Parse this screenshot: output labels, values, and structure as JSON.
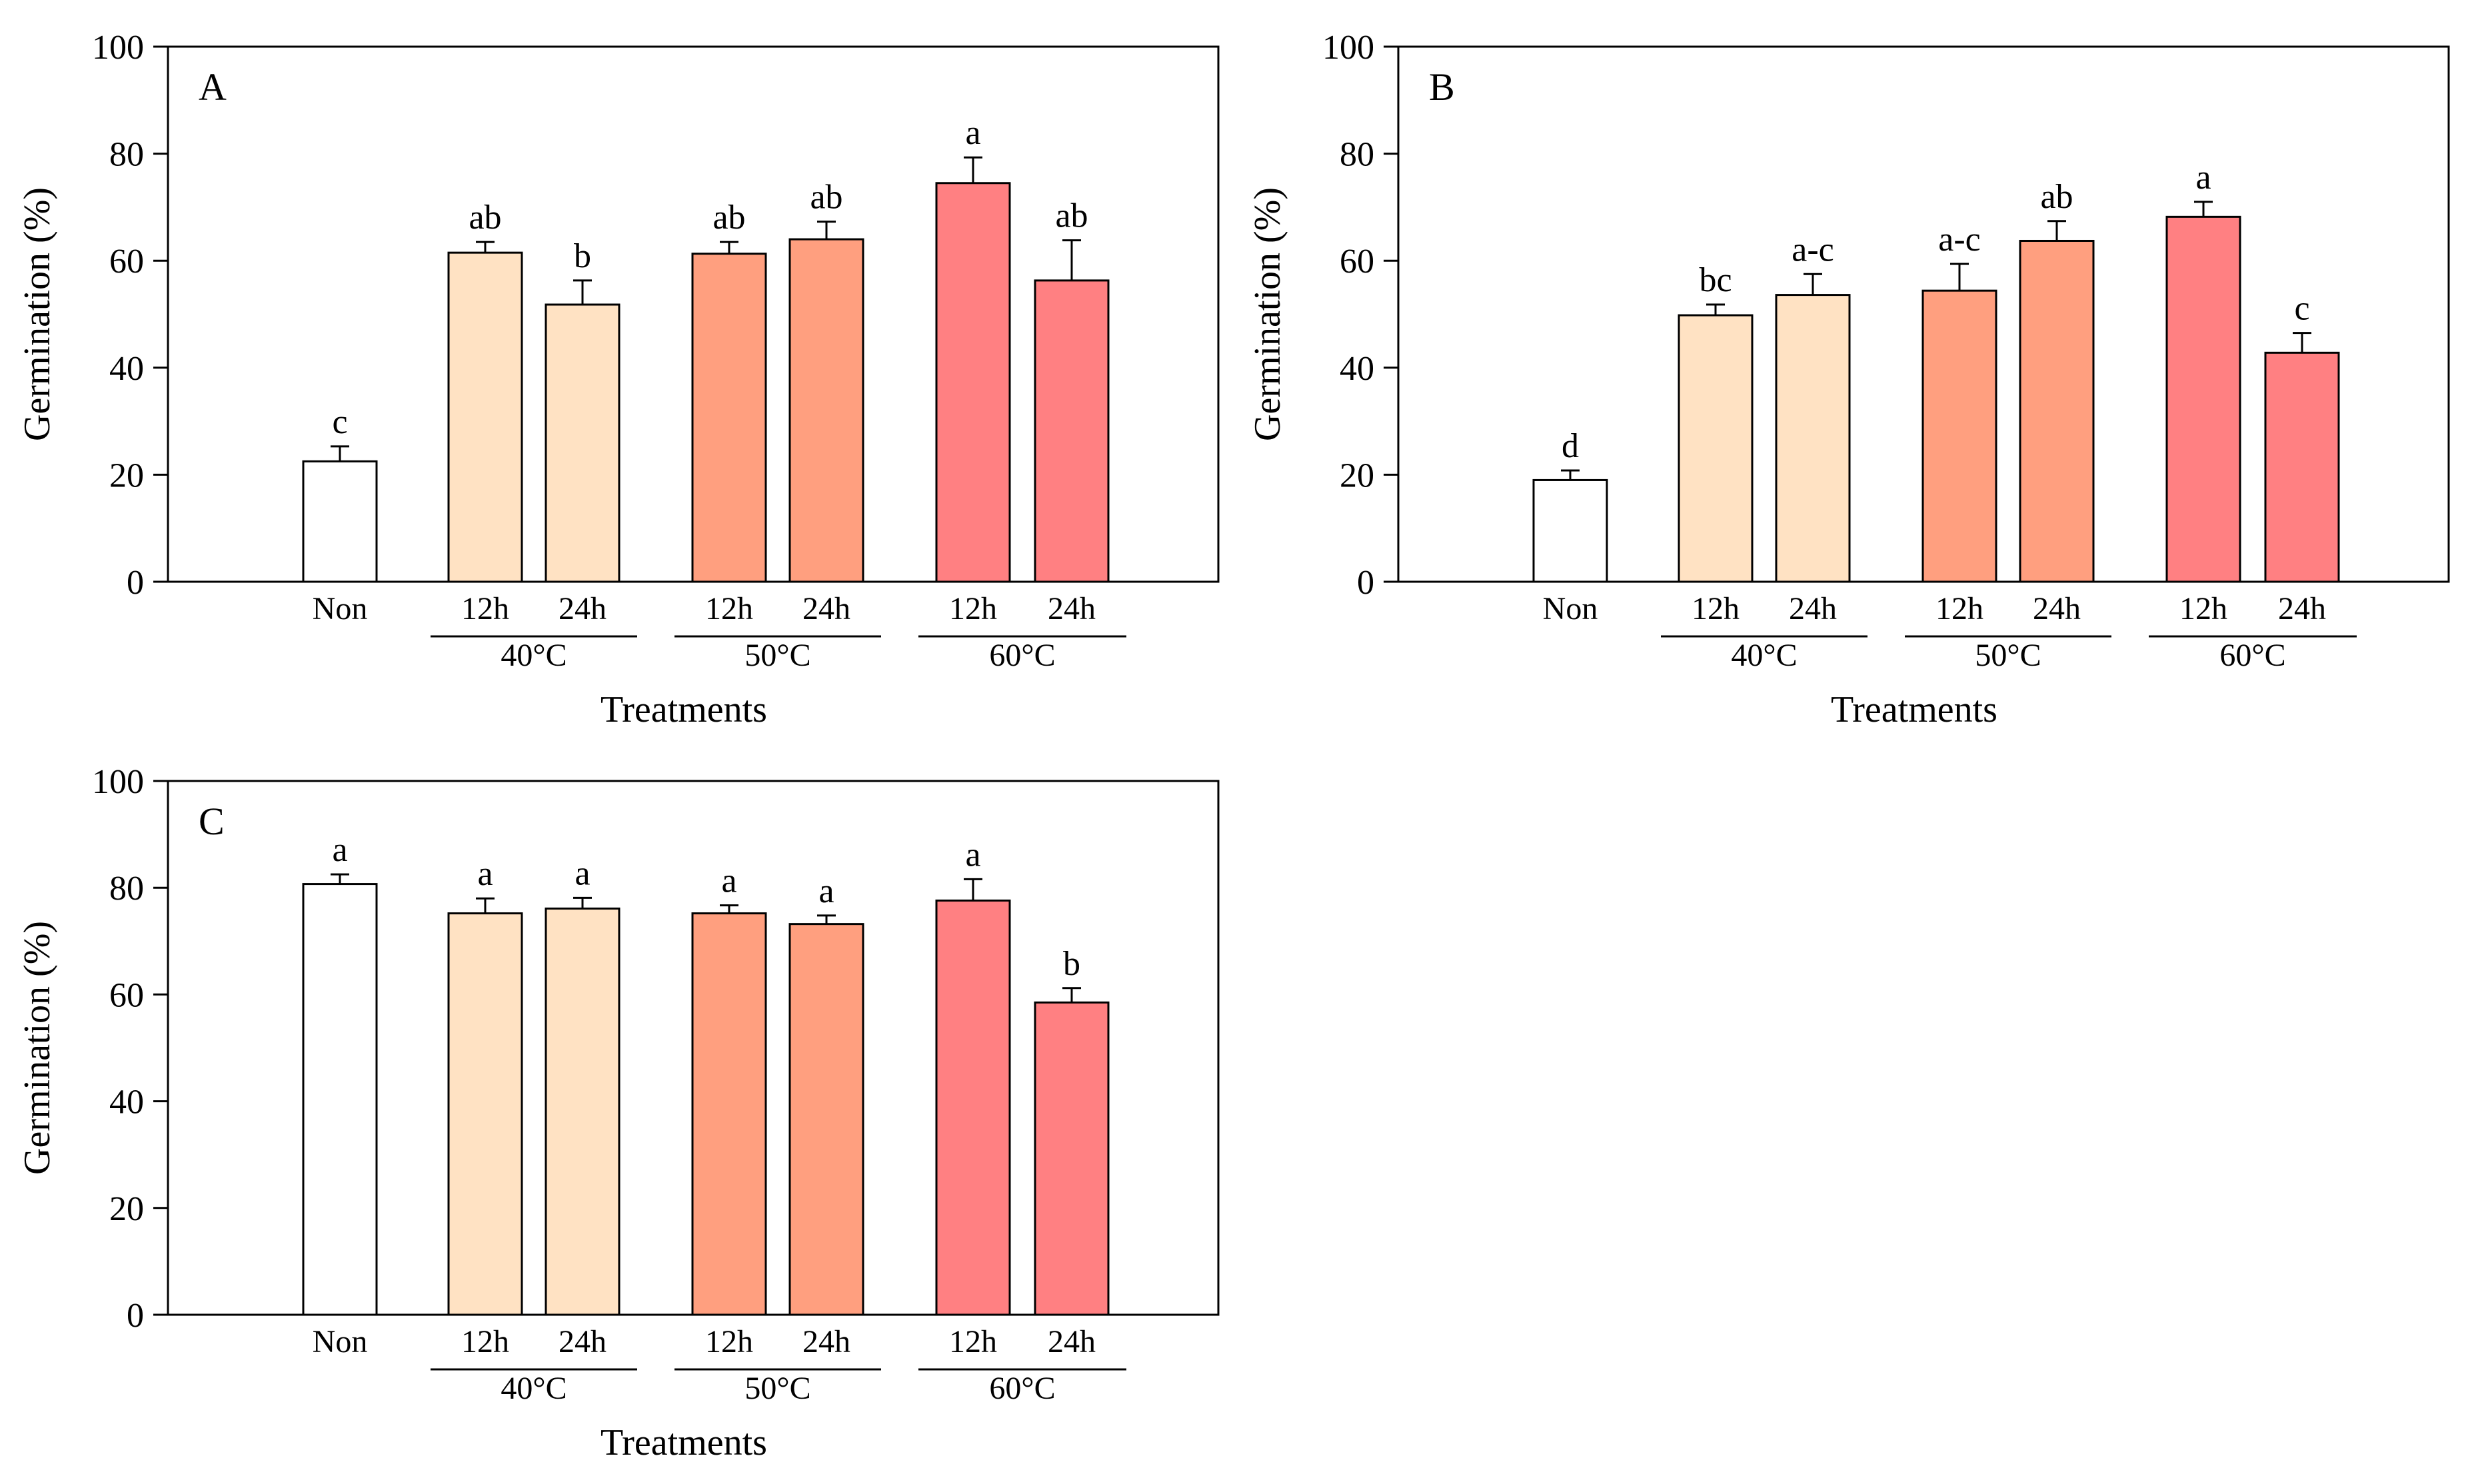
{
  "chart_data": [
    {
      "type": "bar",
      "panel": "A",
      "ylabel": "Germination (%)",
      "xlabel": "Treatments",
      "ylim": [
        0,
        100
      ],
      "yticks": [
        "0",
        "20",
        "40",
        "60",
        "80",
        "100"
      ],
      "categories": [
        "Non",
        "12h",
        "24h",
        "12h",
        "24h",
        "12h",
        "24h"
      ],
      "groups": [
        {
          "label": "40°C",
          "span": [
            1,
            2
          ]
        },
        {
          "label": "50°C",
          "span": [
            3,
            4
          ]
        },
        {
          "label": "60°C",
          "span": [
            5,
            6
          ]
        }
      ],
      "values": [
        22.5,
        61.5,
        51.8,
        61.3,
        64.0,
        74.5,
        56.3
      ],
      "errors": [
        2.8,
        2.0,
        4.5,
        2.2,
        3.3,
        4.8,
        7.5
      ],
      "significance": [
        "c",
        "ab",
        "b",
        "ab",
        "ab",
        "a",
        "ab"
      ],
      "colors": [
        "#ffffff",
        "#ffe2c3",
        "#ffe2c3",
        "#ff9f7f",
        "#ff9f7f",
        "#ff8082",
        "#ff8082"
      ]
    },
    {
      "type": "bar",
      "panel": "B",
      "ylabel": "Germination (%)",
      "xlabel": "Treatments",
      "ylim": [
        0,
        100
      ],
      "yticks": [
        "0",
        "20",
        "40",
        "60",
        "80",
        "100"
      ],
      "categories": [
        "Non",
        "12h",
        "24h",
        "12h",
        "24h",
        "12h",
        "24h"
      ],
      "groups": [
        {
          "label": "40°C",
          "span": [
            1,
            2
          ]
        },
        {
          "label": "50°C",
          "span": [
            3,
            4
          ]
        },
        {
          "label": "60°C",
          "span": [
            5,
            6
          ]
        }
      ],
      "values": [
        19.0,
        49.8,
        53.6,
        54.4,
        63.7,
        68.2,
        42.8
      ],
      "errors": [
        1.8,
        2.0,
        3.9,
        5.0,
        3.7,
        2.8,
        3.7
      ],
      "significance": [
        "d",
        "bc",
        "a-c",
        "a-c",
        "ab",
        "a",
        "c"
      ],
      "colors": [
        "#ffffff",
        "#ffe2c3",
        "#ffe2c3",
        "#ff9f7f",
        "#ff9f7f",
        "#ff8082",
        "#ff8082"
      ]
    },
    {
      "type": "bar",
      "panel": "C",
      "ylabel": "Germination (%)",
      "xlabel": "Treatments",
      "ylim": [
        0,
        100
      ],
      "yticks": [
        "0",
        "20",
        "40",
        "60",
        "80",
        "100"
      ],
      "categories": [
        "Non",
        "12h",
        "24h",
        "12h",
        "24h",
        "12h",
        "24h"
      ],
      "groups": [
        {
          "label": "40°C",
          "span": [
            1,
            2
          ]
        },
        {
          "label": "50°C",
          "span": [
            3,
            4
          ]
        },
        {
          "label": "60°C",
          "span": [
            5,
            6
          ]
        }
      ],
      "values": [
        80.7,
        75.2,
        76.1,
        75.2,
        73.2,
        77.6,
        58.5
      ],
      "errors": [
        1.8,
        2.8,
        2.0,
        1.5,
        1.6,
        4.0,
        2.7
      ],
      "significance": [
        "a",
        "a",
        "a",
        "a",
        "a",
        "a",
        "b"
      ],
      "colors": [
        "#ffffff",
        "#ffe2c3",
        "#ffe2c3",
        "#ff9f7f",
        "#ff9f7f",
        "#ff8082",
        "#ff8082"
      ]
    }
  ]
}
